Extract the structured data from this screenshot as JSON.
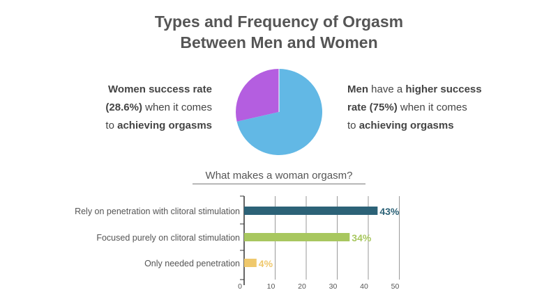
{
  "title": {
    "line1": "Types and Frequency of Orgasm",
    "line2": "Between Men and Women"
  },
  "women": {
    "l1_b": "Women success rate",
    "l2_b": "(28.6%)",
    "l2_n": " when it comes",
    "l3_n": "to ",
    "l3_b": "achieving orgasms"
  },
  "men": {
    "l1_b1": "Men",
    "l1_n": " have a ",
    "l1_b2": "higher success",
    "l2_b": "rate (75%)",
    "l2_n": " when it comes",
    "l3_n": "to ",
    "l3_b": "achieving orgasms"
  },
  "colors": {
    "women": "#b45ee0",
    "men": "#62b8e5",
    "bar1": "#2c6277",
    "bar2": "#a8c75f",
    "bar3": "#efc86c",
    "axis": "#333333",
    "grid": "#999999"
  },
  "chart_data": [
    {
      "type": "pie",
      "slices": [
        {
          "value": 28.6,
          "color": "#b45ee0"
        },
        {
          "value": 71.4,
          "color": "#62b8e5"
        }
      ]
    },
    {
      "type": "bar",
      "orientation": "horizontal",
      "title": "What makes a woman orgasm?",
      "categories": [
        "Rely on penetration with clitoral stimulation",
        "Focused purely on clitoral stimulation",
        "Only needed penetration"
      ],
      "values": [
        43,
        34,
        4
      ],
      "value_labels": [
        "43%",
        "34%",
        "4%"
      ],
      "colors": [
        "#2c6277",
        "#a8c75f",
        "#efc86c"
      ],
      "xlim": [
        0,
        50
      ],
      "xticks": [
        0,
        10,
        20,
        30,
        40,
        50
      ],
      "grid": true
    }
  ]
}
